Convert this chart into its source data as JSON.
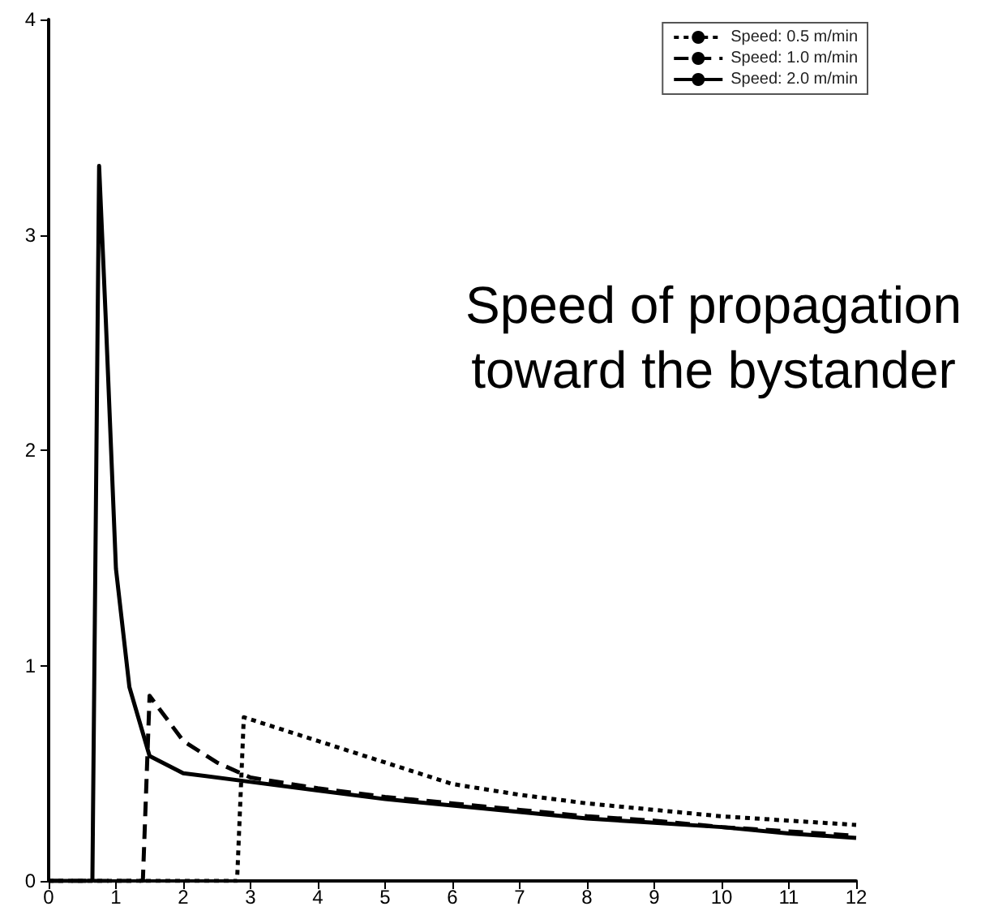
{
  "chart_data": {
    "type": "line",
    "xlim": [
      0,
      12
    ],
    "ylim": [
      0,
      4
    ],
    "xticks": [
      0,
      1,
      2,
      3,
      4,
      5,
      6,
      7,
      8,
      9,
      10,
      11,
      12
    ],
    "yticks": [
      0,
      1,
      2,
      3,
      4
    ],
    "grid": false,
    "legend": "top right",
    "marker": "none",
    "annotations": [
      "Speed of propagation\ntoward the bystander"
    ],
    "series": [
      {
        "name": "Speed: 0.5 m/min",
        "color": "#000000",
        "line_style": "dotted",
        "x": [
          0,
          2.8,
          2.9,
          3.5,
          4,
          5,
          6,
          7,
          8,
          9,
          10,
          11,
          12
        ],
        "values": [
          0,
          0,
          0.76,
          0.7,
          0.65,
          0.55,
          0.45,
          0.4,
          0.36,
          0.33,
          0.3,
          0.28,
          0.26
        ]
      },
      {
        "name": "Speed: 1.0 m/min",
        "color": "#000000",
        "line_style": "dashed",
        "x": [
          0,
          1.4,
          1.5,
          2,
          2.5,
          3,
          4,
          5,
          6,
          7,
          8,
          9,
          10,
          11,
          12
        ],
        "values": [
          0,
          0,
          0.86,
          0.65,
          0.55,
          0.48,
          0.43,
          0.39,
          0.36,
          0.33,
          0.3,
          0.28,
          0.25,
          0.23,
          0.21
        ]
      },
      {
        "name": "Speed: 2.0 m/min",
        "color": "#000000",
        "line_style": "solid",
        "x": [
          0,
          0.65,
          0.75,
          0.85,
          1,
          1.2,
          1.5,
          2,
          3,
          4,
          5,
          6,
          7,
          8,
          9,
          10,
          11,
          12
        ],
        "values": [
          0,
          0,
          3.32,
          2.6,
          1.45,
          0.9,
          0.58,
          0.5,
          0.46,
          0.42,
          0.38,
          0.35,
          0.32,
          0.29,
          0.27,
          0.25,
          0.22,
          0.2
        ]
      }
    ]
  }
}
